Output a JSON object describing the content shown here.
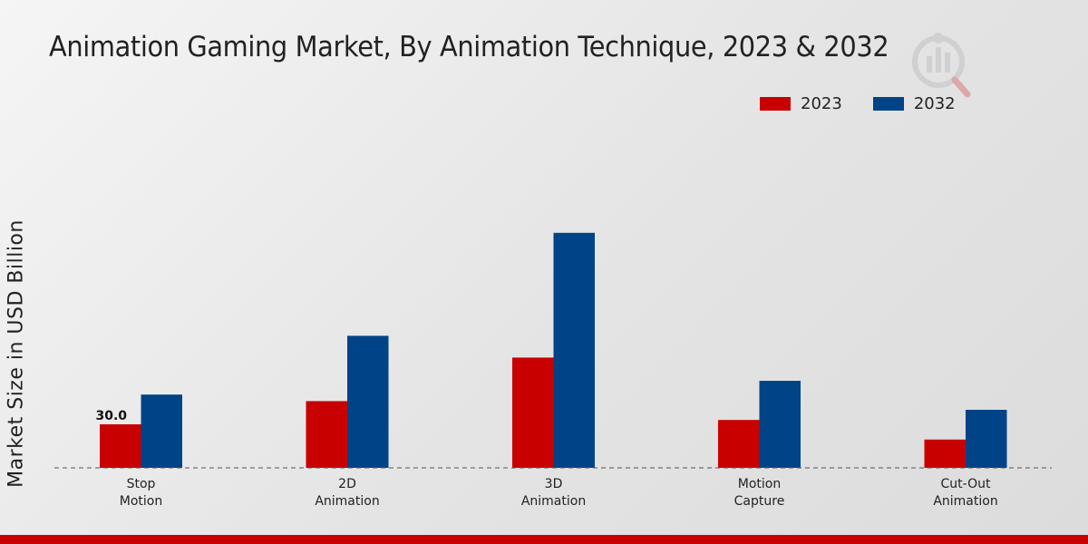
{
  "title": "Animation Gaming Market, By Animation Technique, 2023 & 2032",
  "colors": {
    "series_2023": "#c80000",
    "series_2032": "#004387",
    "bottom_bar": "#c80000",
    "axis": "#555555"
  },
  "watermark_icon": "chart-logo-icon",
  "chart_data": {
    "type": "bar",
    "title": "Animation Gaming Market, By Animation Technique, 2023 & 2032",
    "xlabel": "",
    "ylabel": "Market Size in USD Billion",
    "categories": [
      [
        "Stop",
        "Motion"
      ],
      [
        "2D",
        "Animation"
      ],
      [
        "3D",
        "Animation"
      ],
      [
        "Motion",
        "Capture"
      ],
      [
        "Cut-Out",
        "Animation"
      ]
    ],
    "series": [
      {
        "name": "2023",
        "values": [
          30.0,
          46.0,
          76.0,
          33.0,
          19.5
        ]
      },
      {
        "name": "2032",
        "values": [
          50.5,
          91.0,
          162.0,
          60.0,
          40.0
        ]
      }
    ],
    "data_labels": [
      {
        "series": 0,
        "index": 0,
        "text": "30.0"
      }
    ],
    "ylim": [
      0,
      300
    ],
    "grid": false,
    "legend_position": "top-right"
  }
}
